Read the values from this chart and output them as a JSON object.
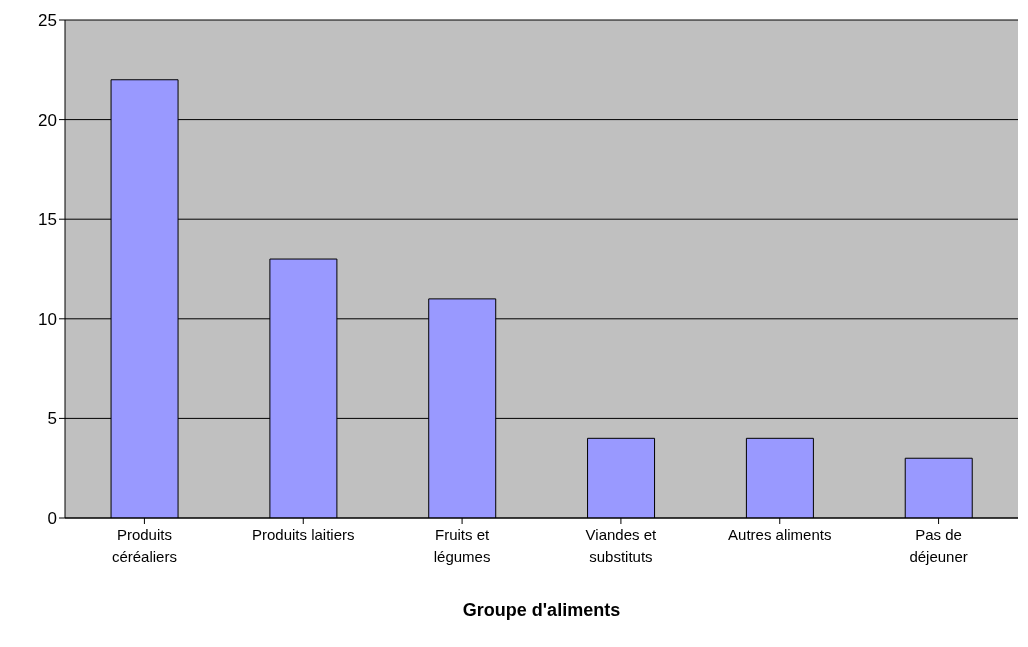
{
  "chart_data": {
    "type": "bar",
    "xlabel": "Groupe d'aliments",
    "categories": [
      "Produits\ncéréaliers",
      "Produits laitiers",
      "Fruits et\nlégumes",
      "Viandes et\nsubstituts",
      "Autres aliments",
      "Pas de\ndéjeuner"
    ],
    "values": [
      22,
      13,
      11,
      4,
      4,
      3
    ],
    "color": "#9999ff",
    "ylim": [
      0,
      25
    ],
    "yticks": [
      0,
      5,
      10,
      15,
      20,
      25
    ],
    "grid": "y"
  }
}
